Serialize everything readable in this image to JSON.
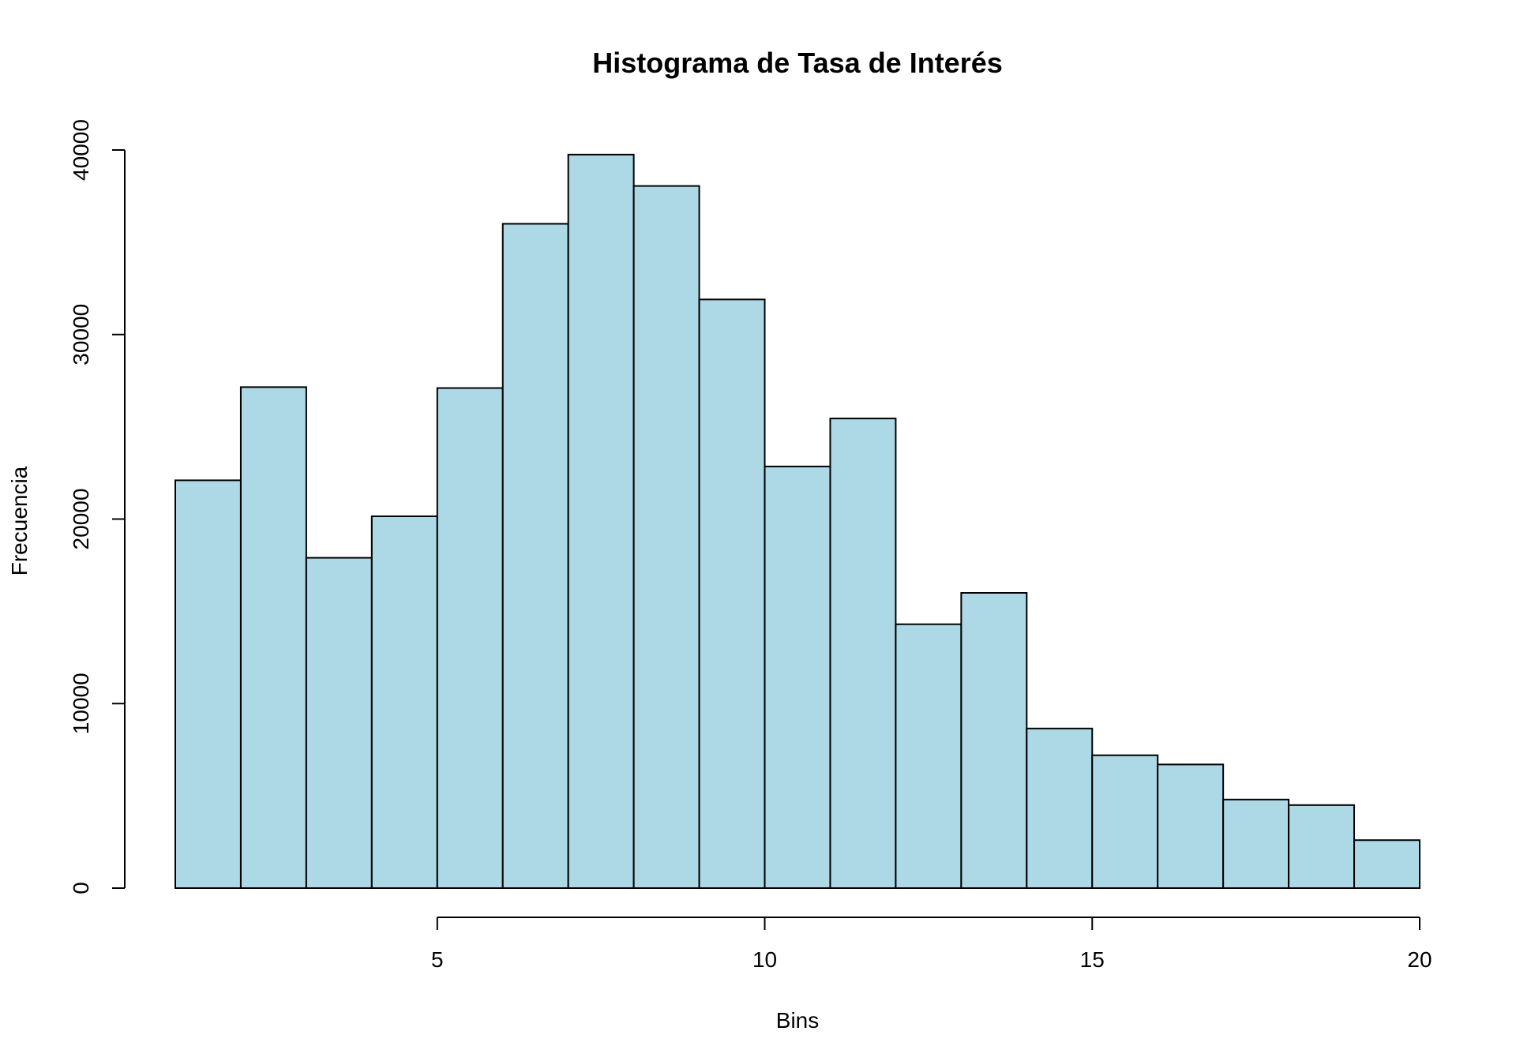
{
  "chart_data": {
    "type": "bar",
    "title": "Histograma de Tasa de Interés",
    "xlabel": "Bins",
    "ylabel": "Frecuencia",
    "bar_color": "#ADD8E6",
    "edge_color": "#000000",
    "x": [
      1,
      2,
      3,
      4,
      5,
      6,
      7,
      8,
      9,
      10,
      11,
      12,
      13,
      14,
      15,
      16,
      17,
      18,
      19
    ],
    "values": [
      22100,
      27150,
      17900,
      20150,
      27100,
      36000,
      39750,
      38050,
      31900,
      22850,
      25450,
      14300,
      16000,
      8650,
      7200,
      6700,
      4800,
      4500,
      2600
    ],
    "xlim": [
      0.25,
      20.5
    ],
    "ylim": [
      0,
      42000
    ],
    "x_ticks": [
      5,
      10,
      15,
      20
    ],
    "x_tick_labels": [
      "5",
      "10",
      "15",
      "20"
    ],
    "x_axis_range": [
      5,
      20
    ],
    "y_ticks": [
      0,
      10000,
      20000,
      30000,
      40000
    ],
    "y_tick_labels": [
      "0",
      "10000",
      "20000",
      "30000",
      "40000"
    ],
    "grid": false,
    "legend": "none"
  }
}
